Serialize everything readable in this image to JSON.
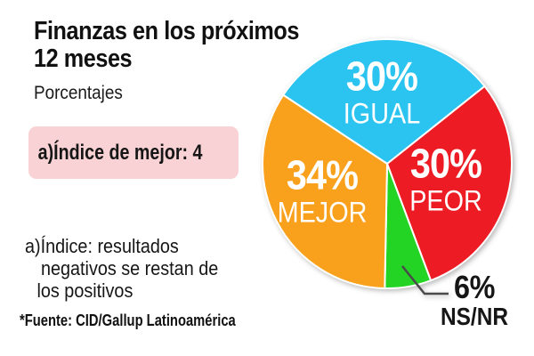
{
  "header": {
    "title_line1": "Finanzas en los próximos",
    "title_line2": "12 meses",
    "subtitle": "Porcentajes"
  },
  "index_box": {
    "text": "a)Índice de mejor: 4",
    "bg_color": "#f8d2d4"
  },
  "footnote": {
    "lines": [
      "a)Índice: resultados",
      "negativos se restan de",
      "los positivos"
    ]
  },
  "source": "*Fuente: CID/Gallup Latinoamérica",
  "chart_data": {
    "type": "pie",
    "title": "Finanzas en los próximos 12 meses",
    "unit": "percent",
    "start_angle_deg": 146.5,
    "direction": "clockwise",
    "total": 100,
    "slices": [
      {
        "label": "IGUAL",
        "value": 30,
        "value_text": "30%",
        "color": "#2bc4f0"
      },
      {
        "label": "PEOR",
        "value": 30,
        "value_text": "30%",
        "color": "#ed1c24"
      },
      {
        "label": "NS/NR",
        "value": 6,
        "value_text": "6%",
        "color": "#24d424",
        "callout": true
      },
      {
        "label": "MEJOR",
        "value": 34,
        "value_text": "34%",
        "color": "#f9a11c"
      }
    ],
    "callout_color": "#4a4a4a",
    "slice_border_color": "#ffffff"
  }
}
